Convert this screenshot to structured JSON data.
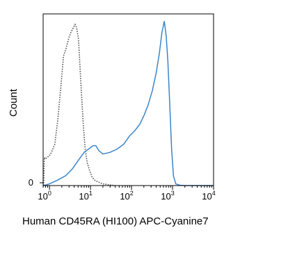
{
  "chart_data": {
    "type": "line",
    "title": "",
    "xlabel": "Human CD45RA (HI100) APC-Cyanine7",
    "ylabel": "Count",
    "x_scale": "log",
    "xlim": [
      0.7,
      10000
    ],
    "ylim": [
      0,
      100
    ],
    "grid": false,
    "legend": "none",
    "x_ticks": [
      {
        "base": "10",
        "exp": "0",
        "value": 1
      },
      {
        "base": "10",
        "exp": "1",
        "value": 10
      },
      {
        "base": "10",
        "exp": "2",
        "value": 100
      },
      {
        "base": "10",
        "exp": "3",
        "value": 1000
      },
      {
        "base": "10",
        "exp": "4",
        "value": 10000
      }
    ],
    "y_ticks": [
      {
        "label": "0",
        "value": 0
      }
    ],
    "series": [
      {
        "style": "dotted",
        "color": "#555555",
        "x": [
          0.72,
          0.75,
          0.8,
          0.88,
          1.0,
          1.12,
          1.35,
          1.6,
          1.9,
          2.2,
          2.5,
          2.9,
          3.3,
          3.8,
          4.2,
          4.6,
          5.1,
          5.8,
          6.6,
          7.4,
          8.3,
          9.5,
          11,
          13,
          16,
          20,
          25,
          32,
          40
        ],
        "y": [
          0,
          17,
          16,
          17,
          18,
          20,
          25,
          40,
          60,
          78,
          82,
          88,
          92,
          95,
          97,
          95,
          88,
          62,
          38,
          22,
          14,
          9,
          5,
          3,
          2,
          1,
          0.7,
          0.3,
          0
        ]
      },
      {
        "style": "solid",
        "color": "#3a85c9",
        "x": [
          0.72,
          1.0,
          1.5,
          2.5,
          3.6,
          5.0,
          7.0,
          9.0,
          11.5,
          13.5,
          16,
          20,
          30,
          45,
          65,
          90,
          120,
          160,
          200,
          250,
          320,
          400,
          480,
          550,
          630,
          700,
          770,
          850,
          950,
          1050,
          1200,
          1500,
          2000,
          10000
        ],
        "y": [
          0,
          1,
          3,
          6,
          10,
          15,
          20,
          22,
          24,
          24,
          21,
          19,
          20,
          22,
          25,
          30,
          33,
          37,
          42,
          48,
          57,
          68,
          80,
          92,
          99,
          90,
          75,
          50,
          22,
          6,
          1,
          0.2,
          0,
          0
        ]
      }
    ]
  }
}
